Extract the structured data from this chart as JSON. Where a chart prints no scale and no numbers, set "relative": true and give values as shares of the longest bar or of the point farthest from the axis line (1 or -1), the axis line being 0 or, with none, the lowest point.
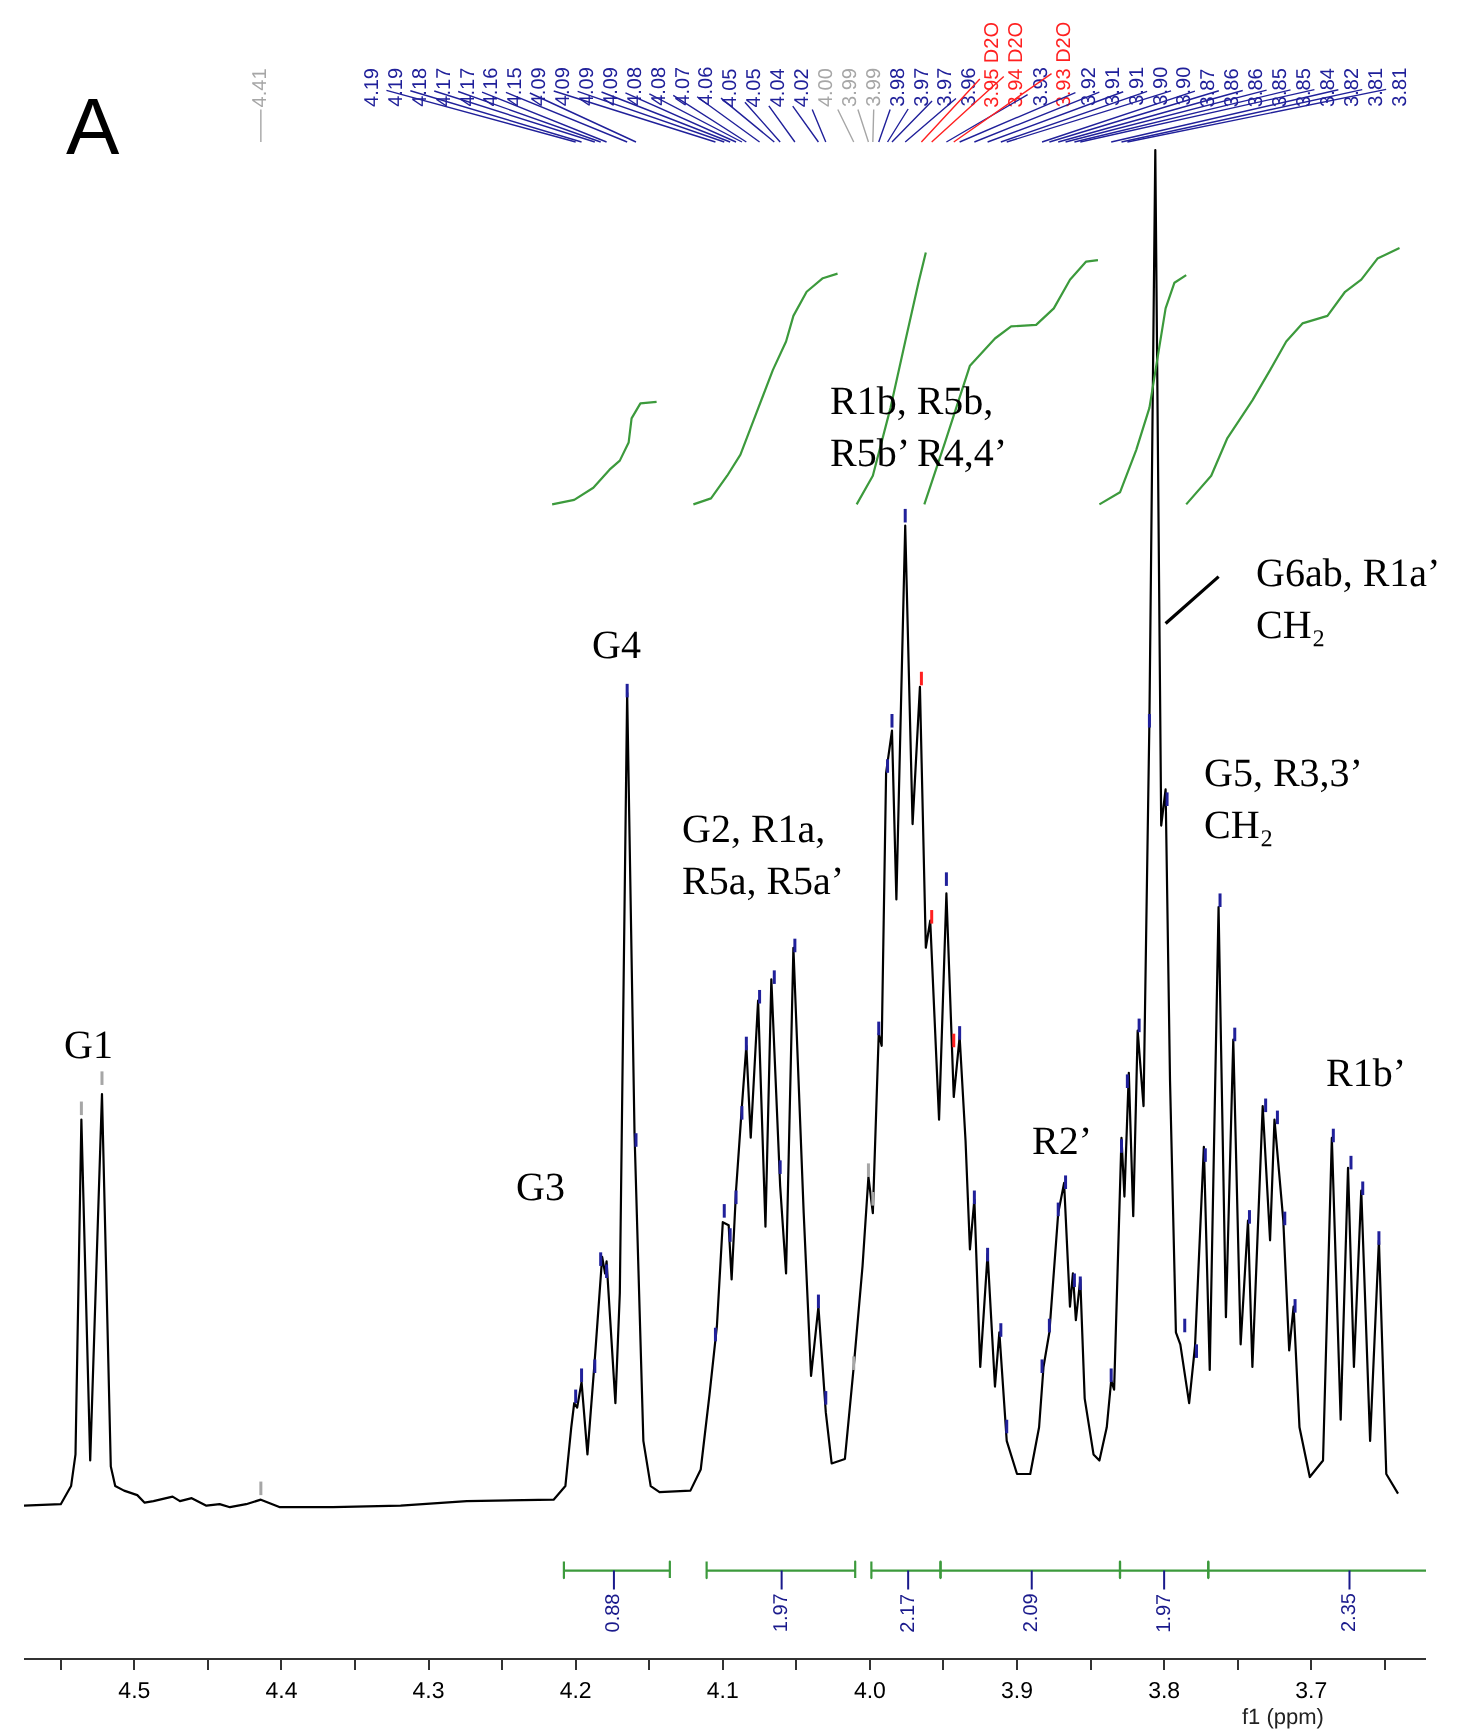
{
  "chart_data": {
    "type": "line",
    "title": "A",
    "xlabel": "f1 (ppm)",
    "relative": true,
    "tick_labels": "x",
    "xlim": [
      4.575,
      3.622
    ],
    "xticks": [
      {
        "value": 4.55,
        "label": null
      },
      4.5,
      {
        "value": 4.45,
        "label": null
      },
      4.4,
      {
        "value": 4.35,
        "label": null
      },
      4.3,
      {
        "value": 4.25,
        "label": null
      },
      4.2,
      {
        "value": 4.15,
        "label": null
      },
      4.1,
      {
        "value": 4.05,
        "label": null
      },
      {
        "value": 4.0,
        "label": "4.0"
      },
      {
        "value": 3.95,
        "label": null
      },
      3.9,
      {
        "value": 3.85,
        "label": null
      },
      3.8,
      {
        "value": 3.75,
        "label": null
      },
      3.7,
      {
        "value": 3.65,
        "label": null
      }
    ],
    "series": [
      {
        "color": "#000000",
        "x": [
          4.575,
          4.55,
          4.543,
          4.54,
          4.536,
          4.53,
          4.522,
          4.516,
          4.513,
          4.507,
          4.498,
          4.493,
          4.487,
          4.474,
          4.469,
          4.461,
          4.451,
          4.442,
          4.435,
          4.424,
          4.414,
          4.401,
          4.365,
          4.319,
          4.274,
          4.215,
          4.207,
          4.203,
          4.201,
          4.199,
          4.196,
          4.192,
          4.187,
          4.182,
          4.18,
          4.179,
          4.173,
          4.17,
          4.165,
          4.16,
          4.154,
          4.149,
          4.143,
          4.122,
          4.115,
          4.109,
          4.104,
          4.1,
          4.096,
          4.094,
          4.091,
          4.087,
          4.084,
          4.081,
          4.076,
          4.071,
          4.067,
          4.061,
          4.057,
          4.052,
          4.045,
          4.04,
          4.035,
          4.03,
          4.026,
          4.017,
          4.011,
          4.005,
          4.001,
          3.998,
          3.994,
          3.992,
          3.989,
          3.985,
          3.982,
          3.976,
          3.971,
          3.966,
          3.962,
          3.959,
          3.953,
          3.948,
          3.943,
          3.939,
          3.935,
          3.932,
          3.929,
          3.925,
          3.92,
          3.915,
          3.912,
          3.907,
          3.9,
          3.891,
          3.885,
          3.882,
          3.878,
          3.872,
          3.868,
          3.864,
          3.862,
          3.86,
          3.857,
          3.854,
          3.848,
          3.844,
          3.839,
          3.836,
          3.834,
          3.829,
          3.827,
          3.824,
          3.821,
          3.818,
          3.814,
          3.81,
          3.806,
          3.802,
          3.799,
          3.796,
          3.792,
          3.789,
          3.783,
          3.779,
          3.773,
          3.769,
          3.763,
          3.758,
          3.753,
          3.748,
          3.743,
          3.74,
          3.733,
          3.728,
          3.725,
          3.719,
          3.715,
          3.712,
          3.708,
          3.701,
          3.692,
          3.686,
          3.68,
          3.675,
          3.671,
          3.666,
          3.66,
          3.654,
          3.649,
          3.641
        ],
        "values": [
          0.101,
          0.102,
          0.114,
          0.135,
          0.357,
          0.131,
          0.374,
          0.127,
          0.114,
          0.111,
          0.108,
          0.103,
          0.104,
          0.107,
          0.104,
          0.106,
          0.101,
          0.102,
          0.1,
          0.102,
          0.105,
          0.1,
          0.1,
          0.101,
          0.104,
          0.105,
          0.114,
          0.153,
          0.169,
          0.166,
          0.183,
          0.135,
          0.198,
          0.266,
          0.255,
          0.263,
          0.169,
          0.242,
          0.64,
          0.348,
          0.144,
          0.114,
          0.11,
          0.111,
          0.125,
          0.175,
          0.22,
          0.289,
          0.287,
          0.251,
          0.31,
          0.366,
          0.406,
          0.345,
          0.436,
          0.286,
          0.45,
          0.313,
          0.255,
          0.471,
          0.295,
          0.187,
          0.233,
          0.163,
          0.129,
          0.132,
          0.193,
          0.26,
          0.319,
          0.295,
          0.414,
          0.406,
          0.587,
          0.615,
          0.503,
          0.751,
          0.553,
          0.644,
          0.471,
          0.489,
          0.357,
          0.507,
          0.372,
          0.412,
          0.343,
          0.271,
          0.304,
          0.193,
          0.268,
          0.18,
          0.216,
          0.144,
          0.122,
          0.122,
          0.153,
          0.193,
          0.216,
          0.295,
          0.315,
          0.233,
          0.255,
          0.224,
          0.251,
          0.172,
          0.135,
          0.131,
          0.153,
          0.184,
          0.178,
          0.345,
          0.306,
          0.388,
          0.293,
          0.416,
          0.366,
          0.622,
          1.0,
          0.552,
          0.576,
          0.383,
          0.216,
          0.208,
          0.169,
          0.207,
          0.339,
          0.191,
          0.498,
          0.226,
          0.41,
          0.208,
          0.29,
          0.193,
          0.366,
          0.277,
          0.357,
          0.29,
          0.204,
          0.233,
          0.153,
          0.12,
          0.131,
          0.345,
          0.158,
          0.325,
          0.193,
          0.31,
          0.144,
          0.277,
          0.122,
          0.109
        ]
      },
      {
        "type": "line",
        "color": "#3c9a3c",
        "x": [
          4.216,
          4.201,
          4.188,
          4.177,
          4.17,
          4.164,
          4.162,
          4.156,
          4.145
        ],
        "values": [
          0.765,
          0.768,
          0.776,
          0.788,
          0.794,
          0.806,
          0.822,
          0.832,
          0.833
        ]
      },
      {
        "type": "line",
        "color": "#3c9a3c",
        "x": [
          4.12,
          4.108,
          4.097,
          4.088,
          4.077,
          4.066,
          4.057,
          4.052,
          4.043,
          4.032,
          4.022
        ],
        "values": [
          0.765,
          0.769,
          0.784,
          0.798,
          0.826,
          0.854,
          0.873,
          0.89,
          0.906,
          0.915,
          0.918
        ]
      },
      {
        "type": "line",
        "color": "#3c9a3c",
        "x": [
          4.009,
          3.998,
          3.986,
          3.976,
          3.967,
          3.962
        ],
        "values": [
          0.765,
          0.784,
          0.829,
          0.873,
          0.912,
          0.932
        ]
      },
      {
        "type": "line",
        "color": "#3c9a3c",
        "x": [
          3.963,
          3.949,
          3.932,
          3.915,
          3.904,
          3.887,
          3.875,
          3.864,
          3.853,
          3.845
        ],
        "values": [
          0.765,
          0.806,
          0.857,
          0.875,
          0.883,
          0.884,
          0.895,
          0.914,
          0.926,
          0.927
        ]
      },
      {
        "type": "line",
        "color": "#3c9a3c",
        "x": [
          3.844,
          3.83,
          3.819,
          3.81,
          3.805,
          3.799,
          3.793,
          3.785
        ],
        "values": [
          0.765,
          0.773,
          0.801,
          0.829,
          0.859,
          0.895,
          0.912,
          0.917
        ]
      },
      {
        "type": "line",
        "color": "#3c9a3c",
        "x": [
          3.785,
          3.768,
          3.757,
          3.74,
          3.728,
          3.717,
          3.706,
          3.689,
          3.677,
          3.666,
          3.655,
          3.64
        ],
        "values": [
          0.765,
          0.784,
          0.809,
          0.834,
          0.854,
          0.873,
          0.885,
          0.89,
          0.906,
          0.914,
          0.928,
          0.935
        ]
      },
      {
        "type": "line",
        "color": "#3c9a3c",
        "x": [
          4.208,
          4.208,
          4.208,
          4.136,
          4.136,
          4.136
        ],
        "values": [
          0.064,
          0.053,
          0.058,
          0.058,
          0.064,
          0.053
        ]
      },
      {
        "type": "line",
        "color": "#3c9a3c",
        "x": [
          4.111,
          4.111,
          4.111,
          4.01,
          4.01,
          4.01
        ],
        "values": [
          0.064,
          0.053,
          0.058,
          0.058,
          0.064,
          0.053
        ]
      },
      {
        "type": "line",
        "color": "#3c9a3c",
        "x": [
          3.999,
          3.999,
          3.999,
          3.952,
          3.952,
          3.952
        ],
        "values": [
          0.064,
          0.053,
          0.058,
          0.058,
          0.064,
          0.053
        ]
      },
      {
        "type": "line",
        "color": "#3c9a3c",
        "x": [
          3.952,
          3.952,
          3.952,
          3.83,
          3.83,
          3.83
        ],
        "values": [
          0.064,
          0.053,
          0.058,
          0.058,
          0.064,
          0.053
        ]
      },
      {
        "type": "line",
        "color": "#3c9a3c",
        "x": [
          3.83,
          3.83,
          3.83,
          3.77,
          3.77,
          3.77
        ],
        "values": [
          0.064,
          0.053,
          0.058,
          0.058,
          0.064,
          0.053
        ]
      },
      {
        "type": "line",
        "color": "#3c9a3c",
        "x": [
          3.77,
          3.77,
          3.77,
          3.622
        ],
        "values": [
          0.064,
          0.053,
          0.058,
          0.058
        ]
      },
      {
        "type": "line",
        "color": "#a6a6a6",
        "x": [
          4.414,
          4.414
        ],
        "values": [
          0.108,
          0.117
        ]
      },
      {
        "type": "line",
        "color": "#20209a",
        "x": [
          4.2,
          4.2
        ],
        "values": [
          0.169,
          0.178
        ]
      },
      {
        "type": "line",
        "color": "#20209a",
        "x": [
          4.196,
          4.196
        ],
        "values": [
          0.183,
          0.192
        ]
      },
      {
        "type": "line",
        "color": "#20209a",
        "x": [
          4.187,
          4.187
        ],
        "values": [
          0.189,
          0.198
        ]
      },
      {
        "type": "line",
        "color": "#20209a",
        "x": [
          4.183,
          4.183
        ],
        "values": [
          0.26,
          0.269
        ]
      },
      {
        "type": "line",
        "color": "#20209a",
        "x": [
          4.179,
          4.179
        ],
        "values": [
          0.252,
          0.261
        ]
      },
      {
        "type": "line",
        "color": "#20209a",
        "x": [
          4.165,
          4.165
        ],
        "values": [
          0.637,
          0.646
        ]
      },
      {
        "type": "line",
        "color": "#20209a",
        "x": [
          4.159,
          4.159
        ],
        "values": [
          0.339,
          0.348
        ]
      },
      {
        "type": "line",
        "color": "#20209a",
        "x": [
          4.105,
          4.105
        ],
        "values": [
          0.21,
          0.219
        ]
      },
      {
        "type": "line",
        "color": "#20209a",
        "x": [
          4.099,
          4.099
        ],
        "values": [
          0.292,
          0.301
        ]
      },
      {
        "type": "line",
        "color": "#20209a",
        "x": [
          4.095,
          4.095
        ],
        "values": [
          0.276,
          0.285
        ]
      },
      {
        "type": "line",
        "color": "#20209a",
        "x": [
          4.091,
          4.091
        ],
        "values": [
          0.301,
          0.31
        ]
      },
      {
        "type": "line",
        "color": "#20209a",
        "x": [
          4.087,
          4.087
        ],
        "values": [
          0.357,
          0.366
        ]
      },
      {
        "type": "line",
        "color": "#20209a",
        "x": [
          4.084,
          4.084
        ],
        "values": [
          0.403,
          0.412
        ]
      },
      {
        "type": "line",
        "color": "#20209a",
        "x": [
          4.075,
          4.075
        ],
        "values": [
          0.434,
          0.443
        ]
      },
      {
        "type": "line",
        "color": "#20209a",
        "x": [
          4.065,
          4.065
        ],
        "values": [
          0.447,
          0.456
        ]
      },
      {
        "type": "line",
        "color": "#20209a",
        "x": [
          4.061,
          4.061
        ],
        "values": [
          0.321,
          0.33
        ]
      },
      {
        "type": "line",
        "color": "#20209a",
        "x": [
          4.051,
          4.051
        ],
        "values": [
          0.468,
          0.477
        ]
      },
      {
        "type": "line",
        "color": "#20209a",
        "x": [
          4.035,
          4.035
        ],
        "values": [
          0.232,
          0.241
        ]
      },
      {
        "type": "line",
        "color": "#20209a",
        "x": [
          4.03,
          4.03
        ],
        "values": [
          0.168,
          0.177
        ]
      },
      {
        "type": "line",
        "color": "#a6a6a6",
        "x": [
          4.011,
          4.011
        ],
        "values": [
          0.191,
          0.2
        ]
      },
      {
        "type": "line",
        "color": "#a6a6a6",
        "x": [
          4.001,
          4.001
        ],
        "values": [
          0.319,
          0.328
        ]
      },
      {
        "type": "line",
        "color": "#a6a6a6",
        "x": [
          3.998,
          3.998
        ],
        "values": [
          0.3,
          0.309
        ]
      },
      {
        "type": "line",
        "color": "#20209a",
        "x": [
          3.994,
          3.994
        ],
        "values": [
          0.413,
          0.422
        ]
      },
      {
        "type": "line",
        "color": "#20209a",
        "x": [
          3.988,
          3.988
        ],
        "values": [
          0.587,
          0.596
        ]
      },
      {
        "type": "line",
        "color": "#20209a",
        "x": [
          3.985,
          3.985
        ],
        "values": [
          0.617,
          0.626
        ]
      },
      {
        "type": "line",
        "color": "#20209a",
        "x": [
          3.976,
          3.976
        ],
        "values": [
          0.753,
          0.762
        ]
      },
      {
        "type": "line",
        "color": "#ff2020",
        "x": [
          3.965,
          3.965
        ],
        "values": [
          0.645,
          0.654
        ]
      },
      {
        "type": "line",
        "color": "#ff2020",
        "x": [
          3.958,
          3.958
        ],
        "values": [
          0.487,
          0.496
        ]
      },
      {
        "type": "line",
        "color": "#20209a",
        "x": [
          3.948,
          3.948
        ],
        "values": [
          0.512,
          0.521
        ]
      },
      {
        "type": "line",
        "color": "#ff2020",
        "x": [
          3.943,
          3.943
        ],
        "values": [
          0.405,
          0.414
        ]
      },
      {
        "type": "line",
        "color": "#20209a",
        "x": [
          3.939,
          3.939
        ],
        "values": [
          0.41,
          0.419
        ]
      },
      {
        "type": "line",
        "color": "#20209a",
        "x": [
          3.929,
          3.929
        ],
        "values": [
          0.301,
          0.31
        ]
      },
      {
        "type": "line",
        "color": "#20209a",
        "x": [
          3.92,
          3.92
        ],
        "values": [
          0.263,
          0.272
        ]
      },
      {
        "type": "line",
        "color": "#20209a",
        "x": [
          3.911,
          3.911
        ],
        "values": [
          0.213,
          0.222
        ]
      },
      {
        "type": "line",
        "color": "#20209a",
        "x": [
          3.907,
          3.907
        ],
        "values": [
          0.149,
          0.158
        ]
      },
      {
        "type": "line",
        "color": "#20209a",
        "x": [
          3.883,
          3.883
        ],
        "values": [
          0.189,
          0.198
        ]
      },
      {
        "type": "line",
        "color": "#20209a",
        "x": [
          3.878,
          3.878
        ],
        "values": [
          0.216,
          0.225
        ]
      },
      {
        "type": "line",
        "color": "#20209a",
        "x": [
          3.872,
          3.872
        ],
        "values": [
          0.293,
          0.302
        ]
      },
      {
        "type": "line",
        "color": "#20209a",
        "x": [
          3.867,
          3.867
        ],
        "values": [
          0.311,
          0.32
        ]
      },
      {
        "type": "line",
        "color": "#20209a",
        "x": [
          3.861,
          3.861
        ],
        "values": [
          0.246,
          0.255
        ]
      },
      {
        "type": "line",
        "color": "#20209a",
        "x": [
          3.857,
          3.857
        ],
        "values": [
          0.244,
          0.253
        ]
      },
      {
        "type": "line",
        "color": "#20209a",
        "x": [
          3.836,
          3.836
        ],
        "values": [
          0.183,
          0.192
        ]
      },
      {
        "type": "line",
        "color": "#20209a",
        "x": [
          3.829,
          3.829
        ],
        "values": [
          0.335,
          0.344
        ]
      },
      {
        "type": "line",
        "color": "#20209a",
        "x": [
          3.825,
          3.825
        ],
        "values": [
          0.378,
          0.387
        ]
      },
      {
        "type": "line",
        "color": "#a6a6a6",
        "x": [
          4.536,
          4.536
        ],
        "values": [
          0.36,
          0.369
        ]
      },
      {
        "type": "line",
        "color": "#a6a6a6",
        "x": [
          4.522,
          4.522
        ],
        "values": [
          0.38,
          0.389
        ]
      },
      {
        "type": "line",
        "color": "#20209a",
        "x": [
          3.817,
          3.817
        ],
        "values": [
          0.415,
          0.424
        ]
      },
      {
        "type": "line",
        "color": "#20209a",
        "x": [
          3.81,
          3.81
        ],
        "values": [
          0.617,
          0.626
        ]
      },
      {
        "type": "line",
        "color": "#20209a",
        "x": [
          3.798,
          3.798
        ],
        "values": [
          0.565,
          0.574
        ]
      },
      {
        "type": "line",
        "color": "#20209a",
        "x": [
          3.786,
          3.786
        ],
        "values": [
          0.216,
          0.225
        ]
      },
      {
        "type": "line",
        "color": "#20209a",
        "x": [
          3.778,
          3.778
        ],
        "values": [
          0.199,
          0.208
        ]
      },
      {
        "type": "line",
        "color": "#20209a",
        "x": [
          3.772,
          3.772
        ],
        "values": [
          0.329,
          0.338
        ]
      },
      {
        "type": "line",
        "color": "#20209a",
        "x": [
          3.762,
          3.762
        ],
        "values": [
          0.498,
          0.507
        ]
      },
      {
        "type": "line",
        "color": "#20209a",
        "x": [
          3.752,
          3.752
        ],
        "values": [
          0.409,
          0.418
        ]
      },
      {
        "type": "line",
        "color": "#20209a",
        "x": [
          3.742,
          3.742
        ],
        "values": [
          0.288,
          0.297
        ]
      },
      {
        "type": "line",
        "color": "#20209a",
        "x": [
          3.731,
          3.731
        ],
        "values": [
          0.362,
          0.371
        ]
      },
      {
        "type": "line",
        "color": "#20209a",
        "x": [
          3.723,
          3.723
        ],
        "values": [
          0.354,
          0.363
        ]
      },
      {
        "type": "line",
        "color": "#20209a",
        "x": [
          3.718,
          3.718
        ],
        "values": [
          0.287,
          0.296
        ]
      },
      {
        "type": "line",
        "color": "#20209a",
        "x": [
          3.711,
          3.711
        ],
        "values": [
          0.229,
          0.238
        ]
      },
      {
        "type": "line",
        "color": "#20209a",
        "x": [
          3.685,
          3.685
        ],
        "values": [
          0.342,
          0.351
        ]
      },
      {
        "type": "line",
        "color": "#20209a",
        "x": [
          3.673,
          3.673
        ],
        "values": [
          0.324,
          0.333
        ]
      },
      {
        "type": "line",
        "color": "#20209a",
        "x": [
          3.665,
          3.665
        ],
        "values": [
          0.307,
          0.316
        ]
      },
      {
        "type": "line",
        "color": "#20209a",
        "x": [
          3.654,
          3.654
        ],
        "values": [
          0.274,
          0.283
        ]
      }
    ],
    "annotations": [
      {
        "text": "G1",
        "x": 4.529,
        "y": 0.374
      },
      {
        "text": "G3",
        "x": 4.182,
        "y": 0.266
      },
      {
        "text": "G4",
        "x": 4.165,
        "y": 0.64
      },
      {
        "text": "G2, R1a,\nR5a, R5a’",
        "x": 4.052,
        "y": 0.471
      },
      {
        "text": "R1b, R5b,\nR5b’ R4,4’",
        "x": 3.976,
        "y": 0.751
      },
      {
        "text": "G6ab, R1a’\nCH₂",
        "x": 3.799,
        "y": 0.686
      },
      {
        "text": "G5, R3,3’\nCH₂",
        "x": 3.763,
        "y": 0.498
      },
      {
        "text": "R2’",
        "x": 3.868,
        "y": 0.315
      },
      {
        "text": "R1b’",
        "x": 3.686,
        "y": 0.345
      },
      {
        "text": "0.88",
        "x": 4.174,
        "y": 0.058
      },
      {
        "text": "1.97",
        "x": 4.06,
        "y": 0.058
      },
      {
        "text": "2.17",
        "x": 3.974,
        "y": 0.058
      },
      {
        "text": "2.09",
        "x": 3.89,
        "y": 0.058
      },
      {
        "text": "1.97",
        "x": 3.8,
        "y": 0.058
      },
      {
        "text": "2.35",
        "x": 3.674,
        "y": 0.058
      },
      "4.41",
      "4.19",
      "4.19",
      "4.18",
      "4.17",
      "4.17",
      "4.16",
      "4.15",
      "4.09",
      "4.09",
      "4.09",
      "4.09",
      "4.08",
      "4.08",
      "4.07",
      "4.06",
      "4.05",
      "4.05",
      "4.04",
      "4.02",
      "4.00",
      "3.99",
      "3.99",
      "3.98",
      "3.97",
      "3.97",
      "3.96",
      "3.95 D2O",
      "3.94 D2O",
      "3.93",
      "3.93 D2O",
      "3.92",
      "3.91",
      "3.91",
      "3.90",
      "3.90",
      "3.87",
      "3.86",
      "3.86",
      "3.85",
      "3.85",
      "3.84",
      "3.82",
      "3.81",
      "3.81"
    ]
  }
}
